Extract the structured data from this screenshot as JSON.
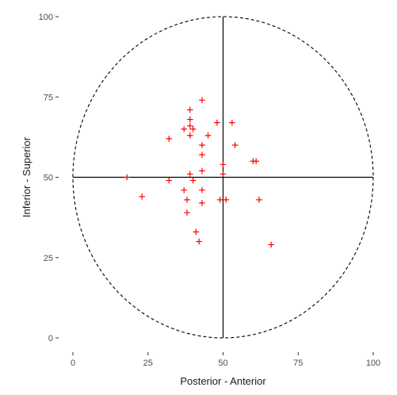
{
  "chart_data": {
    "type": "scatter",
    "title": "",
    "xlabel": "Posterior - Anterior",
    "ylabel": "Inferior - Superior",
    "xlim": [
      0,
      100
    ],
    "ylim": [
      0,
      100
    ],
    "x_ticks": [
      0,
      25,
      50,
      75,
      100
    ],
    "y_ticks": [
      0,
      25,
      50,
      75,
      100
    ],
    "x_tick_labels": [
      "0",
      "25",
      "50",
      "75",
      "100"
    ],
    "y_tick_labels": [
      "0",
      "25",
      "50",
      "75",
      "100"
    ],
    "grid": false,
    "reference_lines": {
      "vertical_x": 50,
      "horizontal_y": 50
    },
    "boundary_circle": {
      "center": [
        50,
        50
      ],
      "radius": 50,
      "style": "dashed"
    },
    "marker": "plus",
    "marker_color": "#ff0000",
    "points": [
      [
        43,
        74
      ],
      [
        39,
        71
      ],
      [
        39,
        68
      ],
      [
        39,
        66
      ],
      [
        40,
        65
      ],
      [
        37,
        65
      ],
      [
        48,
        67
      ],
      [
        53,
        67
      ],
      [
        45,
        63
      ],
      [
        39,
        63
      ],
      [
        32,
        62
      ],
      [
        43,
        60
      ],
      [
        54,
        60
      ],
      [
        43,
        57
      ],
      [
        60,
        55
      ],
      [
        61,
        55
      ],
      [
        50,
        54
      ],
      [
        43,
        52
      ],
      [
        39,
        51
      ],
      [
        50,
        51
      ],
      [
        18,
        50
      ],
      [
        40,
        49
      ],
      [
        32,
        49
      ],
      [
        37,
        46
      ],
      [
        43,
        46
      ],
      [
        23,
        44
      ],
      [
        38,
        43
      ],
      [
        49,
        43
      ],
      [
        51,
        43
      ],
      [
        62,
        43
      ],
      [
        43,
        42
      ],
      [
        38,
        39
      ],
      [
        41,
        33
      ],
      [
        42,
        30
      ],
      [
        66,
        29
      ]
    ]
  }
}
